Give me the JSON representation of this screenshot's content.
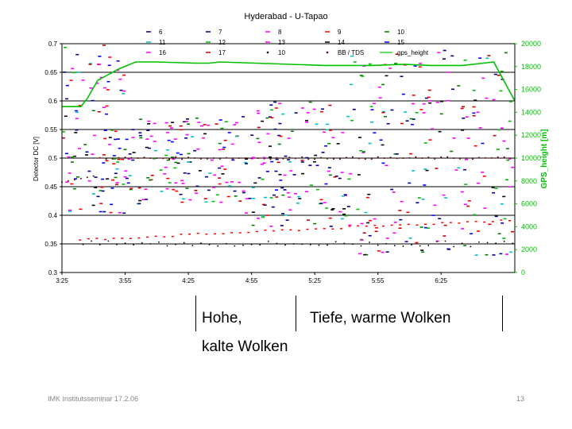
{
  "chart_data": {
    "type": "scatter",
    "title": "Hyderabad - U-Tapao",
    "ylabel": "Detector DC [V]",
    "y2label": "GPS_height [m]",
    "xlabel": "",
    "ylim": [
      0.3,
      0.7
    ],
    "y2lim": [
      0,
      20000
    ],
    "yticks": [
      "0.7",
      "0.65",
      "0.6",
      "0.55",
      "0.5",
      "0.45",
      "0.4",
      "0.35",
      "0.3"
    ],
    "y2ticks": [
      "20000",
      "18000",
      "16000",
      "14000",
      "12000",
      "10000",
      "8000",
      "6000",
      "4000",
      "2000",
      "0"
    ],
    "xticks": [
      "3:25",
      "3:55",
      "4:25",
      "4:55",
      "5:25",
      "5:55",
      "6:25"
    ],
    "xrange_minutes": [
      205,
      420
    ],
    "grid": "horizontal",
    "legend_position": "top",
    "legend": [
      {
        "name": "6",
        "color": "#000080",
        "marker": "dash"
      },
      {
        "name": "7",
        "color": "#000080",
        "marker": "dash"
      },
      {
        "name": "8",
        "color": "#ff00ff",
        "marker": "dash"
      },
      {
        "name": "9",
        "color": "#ff0000",
        "marker": "dash"
      },
      {
        "name": "10",
        "color": "#008000",
        "marker": "dash"
      },
      {
        "name": "11",
        "color": "#00c0c0",
        "marker": "dash"
      },
      {
        "name": "12",
        "color": "#00c000",
        "marker": "dash"
      },
      {
        "name": "13",
        "color": "#ff00ff",
        "marker": "dash"
      },
      {
        "name": "14",
        "color": "#000000",
        "marker": "dash"
      },
      {
        "name": "15",
        "color": "#0000ff",
        "marker": "dash"
      },
      {
        "name": "16",
        "color": "#ff00ff",
        "marker": "dash"
      },
      {
        "name": "17",
        "color": "#cc0000",
        "marker": "dash"
      },
      {
        "name": "10",
        "color": "#000000",
        "marker": "dot"
      },
      {
        "name": "BB / TDS",
        "color": "#800000",
        "marker": "dot"
      },
      {
        "name": "gps_height",
        "color": "#00c000",
        "marker": "line"
      }
    ],
    "series": [
      {
        "name": "gps_height",
        "x": [
          205,
          214,
          217,
          222,
          232,
          240,
          250,
          268,
          275,
          280,
          330,
          352,
          368,
          380,
          395,
          405,
          410,
          420
        ],
        "y": [
          14500,
          14500,
          15200,
          16800,
          17800,
          18400,
          18400,
          18300,
          18300,
          18400,
          18100,
          18100,
          18200,
          18100,
          18100,
          18300,
          18400,
          15000
        ]
      }
    ],
    "colors": {
      "gps": "#00c000",
      "grid": "#000000"
    }
  },
  "annotations": {
    "left_line1": "Hohe,",
    "left_line2": "kalte Wolken",
    "right": "Tiefe, warme Wolken"
  },
  "footer": {
    "left": "IMK Institutsseminar  17.2.06",
    "right": "13"
  }
}
